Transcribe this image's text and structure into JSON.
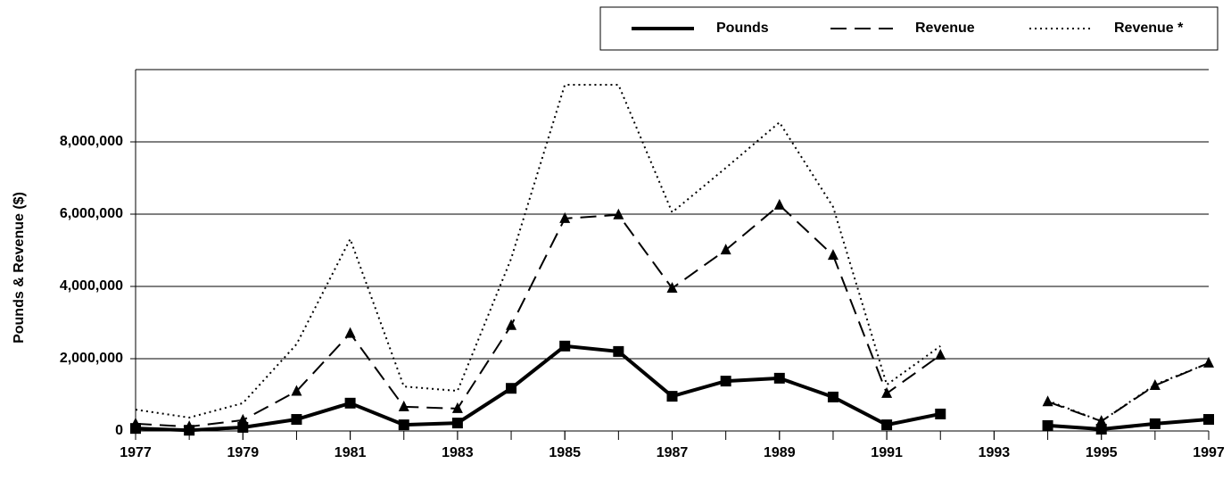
{
  "chart_data": {
    "type": "line",
    "y_label": "Pounds & Revenue ($)",
    "x": [
      1977,
      1978,
      1979,
      1980,
      1981,
      1982,
      1983,
      1984,
      1985,
      1986,
      1987,
      1988,
      1989,
      1990,
      1991,
      1992,
      1993,
      1994,
      1995,
      1996,
      1997
    ],
    "series": [
      {
        "name": "Pounds",
        "color": "#000000",
        "line_style": "solid",
        "marker": "square",
        "values": [
          70000,
          20000,
          100000,
          320000,
          770000,
          170000,
          220000,
          1180000,
          2350000,
          2200000,
          960000,
          1380000,
          1460000,
          940000,
          170000,
          470000,
          null,
          150000,
          50000,
          200000,
          320000
        ]
      },
      {
        "name": "Revenue",
        "color": "#000000",
        "line_style": "dashed",
        "marker": "triangle",
        "values": [
          200000,
          120000,
          300000,
          1100000,
          2700000,
          670000,
          620000,
          2920000,
          5880000,
          5980000,
          3950000,
          5010000,
          6250000,
          4860000,
          1040000,
          2100000,
          null,
          810000,
          270000,
          1260000,
          1880000
        ]
      },
      {
        "name": "Revenue *",
        "color": "#000000",
        "line_style": "dotted",
        "marker": "none",
        "values": [
          590000,
          370000,
          770000,
          2400000,
          5310000,
          1230000,
          1110000,
          4770000,
          9580000,
          9580000,
          6050000,
          7280000,
          8540000,
          6200000,
          1280000,
          2350000,
          null,
          840000,
          270000,
          1280000,
          1880000
        ]
      }
    ],
    "xlim": [
      1977,
      1997
    ],
    "xticks": [
      1977,
      1979,
      1981,
      1983,
      1985,
      1987,
      1989,
      1991,
      1993,
      1995,
      1997
    ],
    "ylim": [
      0,
      10000000
    ],
    "yticks": [
      0,
      {
        "value": 2000000,
        "label": "2,000,000"
      },
      {
        "value": 4000000,
        "label": "4,000,000"
      },
      {
        "value": 6000000,
        "label": "6,000,000"
      },
      {
        "value": 8000000,
        "label": "8,000,000"
      }
    ],
    "grid": true,
    "legend": "top-right"
  }
}
